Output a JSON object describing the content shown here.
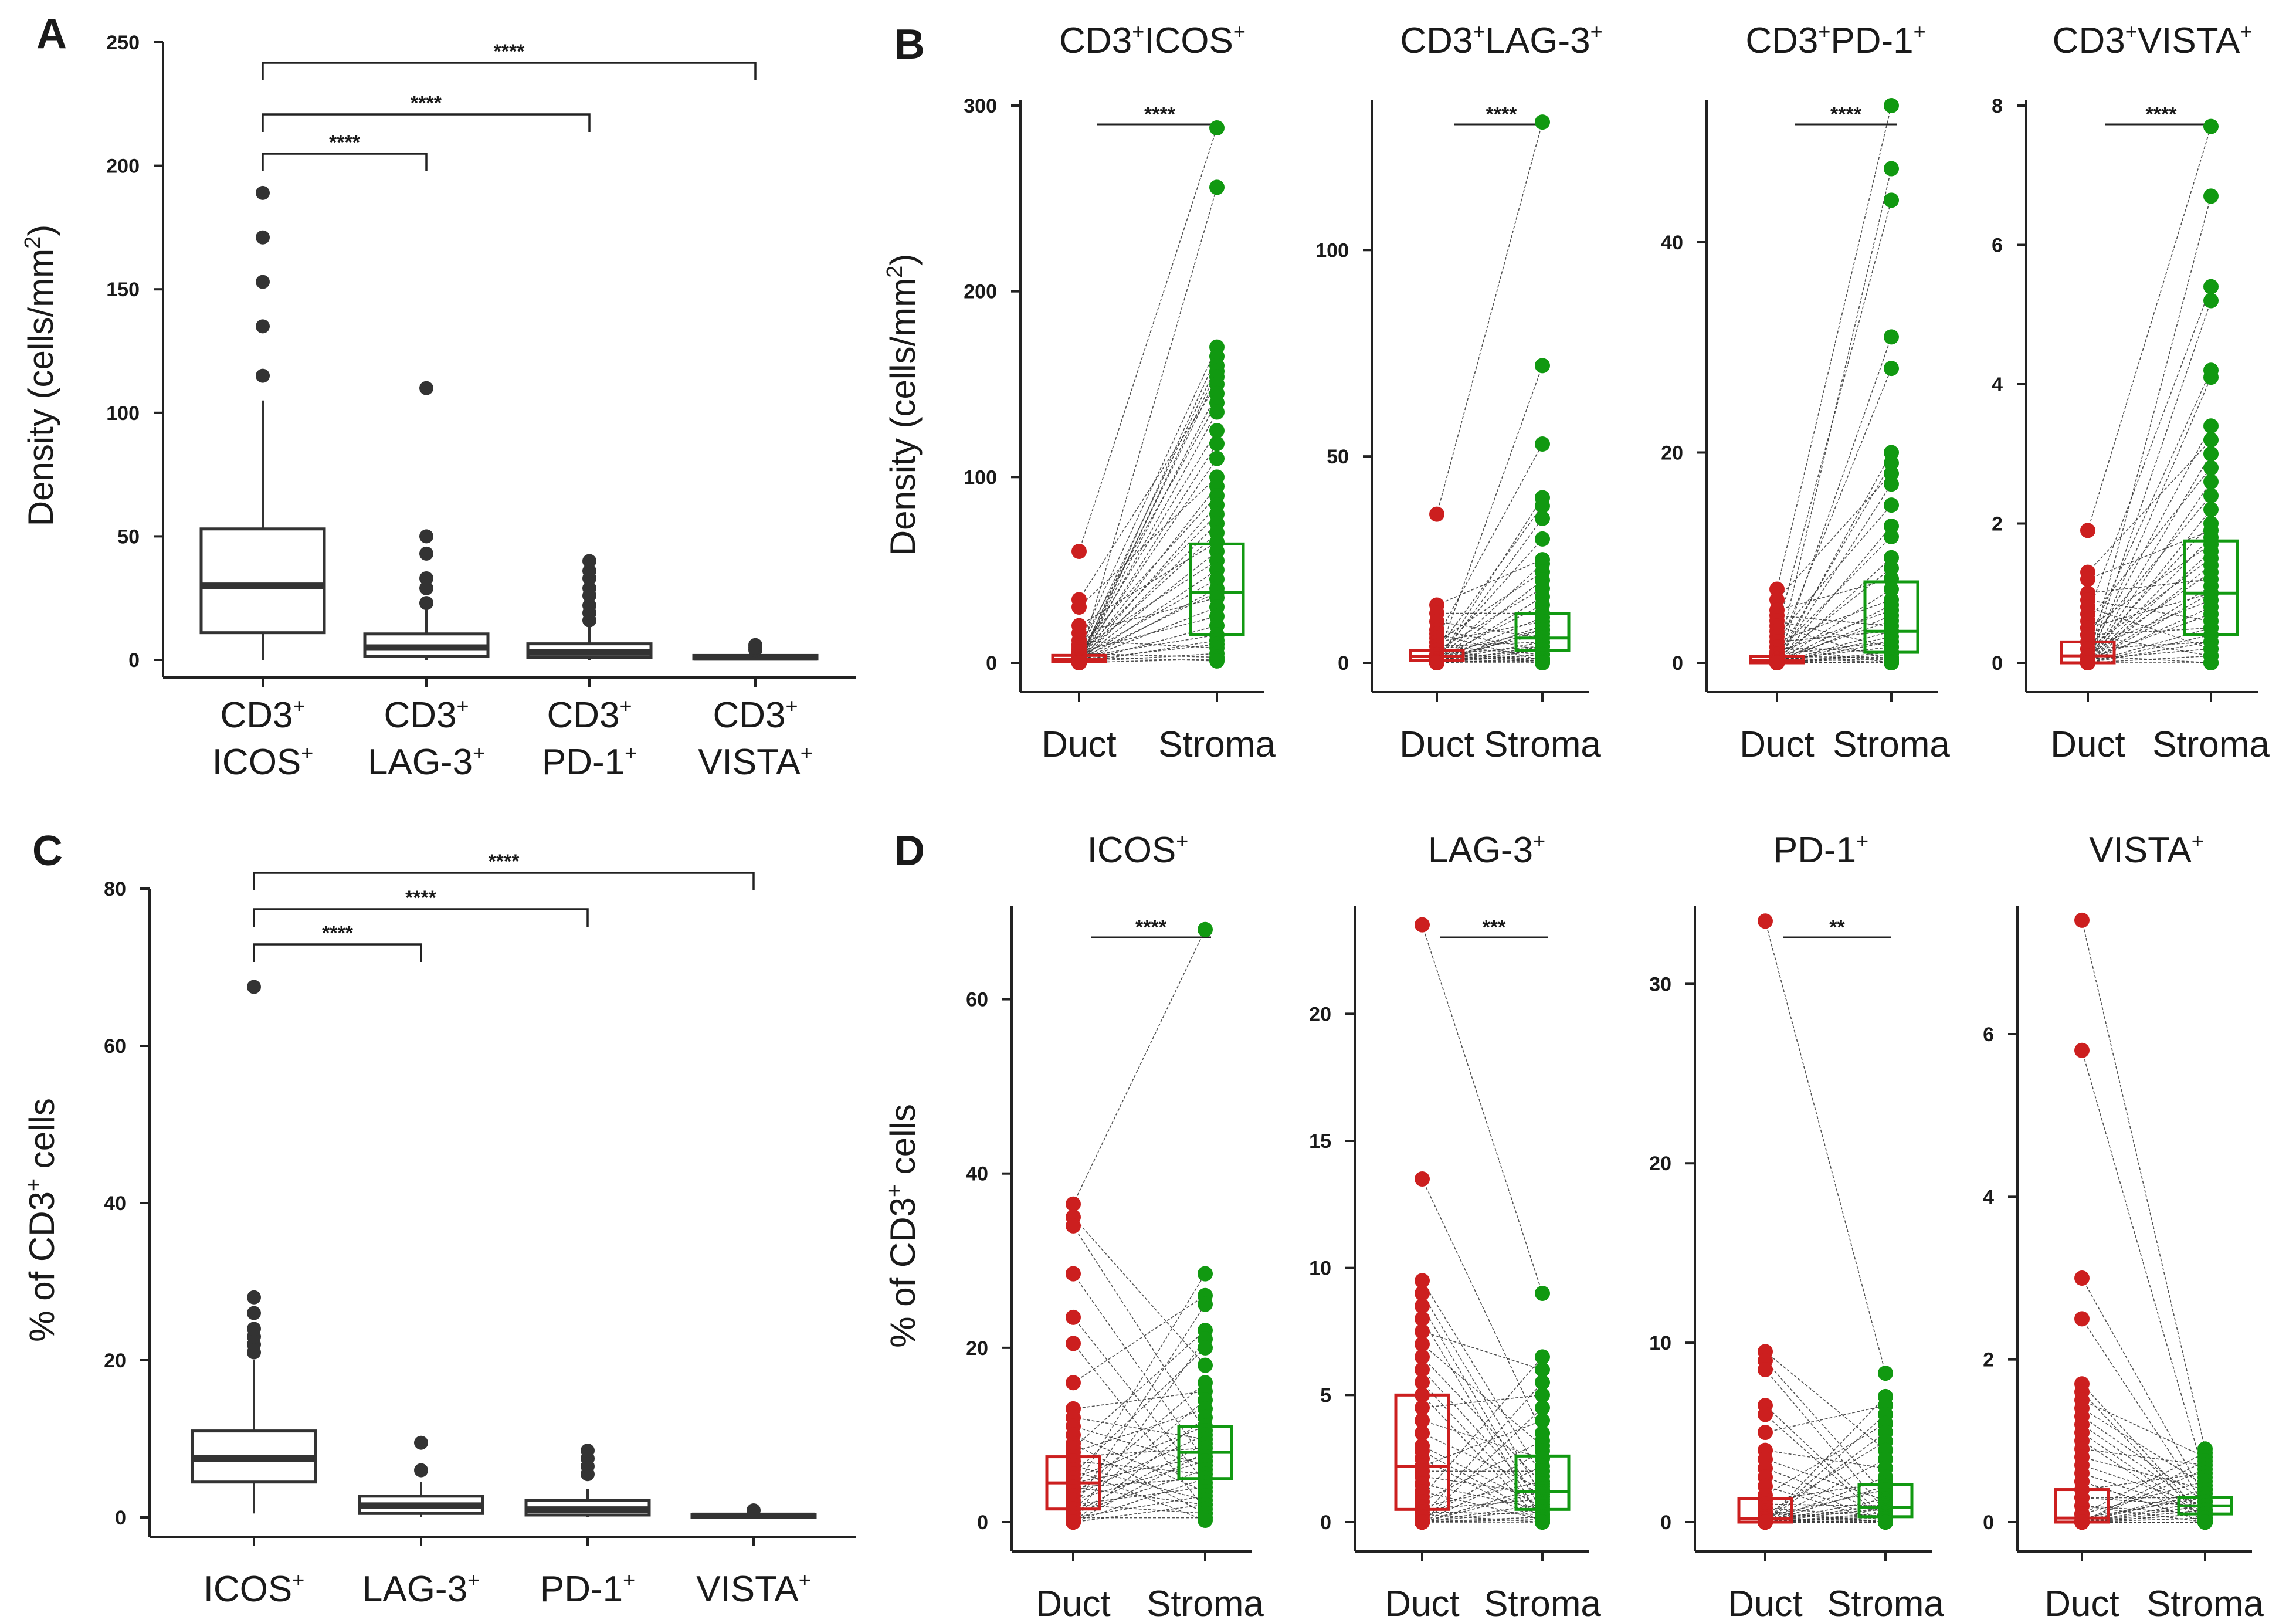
{
  "colors": {
    "duct": "#cc1f1f",
    "stroma": "#119911",
    "box": "#333333",
    "line": "#222222"
  },
  "chart_data": [
    {
      "id": "A",
      "type": "box",
      "panel_label": "A",
      "ylabel_main": "Density (cells/mm",
      "ylabel_sup": "2",
      "ylabel_end": ")",
      "ylim": [
        0,
        250
      ],
      "yticks": [
        "0",
        "50",
        "100",
        "150",
        "200",
        "250"
      ],
      "categories": [
        {
          "line1": "CD3",
          "sup1": "+",
          "line2": "ICOS",
          "sup2": "+"
        },
        {
          "line1": "CD3",
          "sup1": "+",
          "line2": "LAG-3",
          "sup2": "+"
        },
        {
          "line1": "CD3",
          "sup1": "+",
          "line2": "PD-1",
          "sup2": "+"
        },
        {
          "line1": "CD3",
          "sup1": "+",
          "line2": "VISTA",
          "sup2": "+"
        }
      ],
      "boxes": [
        {
          "q1": 11,
          "median": 30,
          "q3": 53,
          "lo": 0,
          "hi": 105,
          "outliers": [
            115,
            135,
            153,
            171,
            189
          ]
        },
        {
          "q1": 1.5,
          "median": 5,
          "q3": 10.5,
          "lo": 0,
          "hi": 21,
          "outliers": [
            23,
            29,
            33,
            43,
            50,
            110
          ]
        },
        {
          "q1": 1,
          "median": 3,
          "q3": 6.5,
          "lo": 0,
          "hi": 14,
          "outliers": [
            16,
            19,
            22,
            26,
            29,
            33,
            36,
            40
          ]
        },
        {
          "q1": 0.3,
          "median": 1,
          "q3": 1.8,
          "lo": 0,
          "hi": 3,
          "outliers": [
            4,
            5,
            6
          ]
        }
      ],
      "significance": [
        {
          "from": 0,
          "to": 1,
          "label": "****"
        },
        {
          "from": 0,
          "to": 2,
          "label": "****"
        },
        {
          "from": 0,
          "to": 3,
          "label": "****"
        }
      ]
    },
    {
      "id": "C",
      "type": "box",
      "panel_label": "C",
      "ylabel_main": "% of CD3",
      "ylabel_sup": "+",
      "ylabel_end": " cells",
      "ylim": [
        0,
        80
      ],
      "yticks": [
        "0",
        "20",
        "40",
        "60",
        "80"
      ],
      "categories": [
        {
          "line1": "ICOS",
          "sup1": "+"
        },
        {
          "line1": "LAG-3",
          "sup1": "+"
        },
        {
          "line1": "PD-1",
          "sup1": "+"
        },
        {
          "line1": "VISTA",
          "sup1": "+"
        }
      ],
      "boxes": [
        {
          "q1": 4.5,
          "median": 7.5,
          "q3": 11,
          "lo": 0.5,
          "hi": 20,
          "outliers": [
            21,
            22,
            23,
            24,
            26,
            28,
            67.5
          ]
        },
        {
          "q1": 0.5,
          "median": 1.5,
          "q3": 2.7,
          "lo": 0,
          "hi": 4.5,
          "outliers": [
            6,
            9.5
          ]
        },
        {
          "q1": 0.3,
          "median": 1,
          "q3": 2.2,
          "lo": 0,
          "hi": 3.6,
          "outliers": [
            5.5,
            6.5,
            7.5,
            8.5
          ]
        },
        {
          "q1": 0,
          "median": 0.2,
          "q3": 0.4,
          "lo": 0,
          "hi": 0.6,
          "outliers": [
            0.9
          ]
        }
      ],
      "significance": [
        {
          "from": 0,
          "to": 1,
          "label": "****"
        },
        {
          "from": 0,
          "to": 2,
          "label": "****"
        },
        {
          "from": 0,
          "to": 3,
          "label": "****"
        }
      ]
    },
    {
      "id": "B1",
      "type": "paired",
      "panel_label": "B",
      "title": "CD3",
      "title_sup1": "+",
      "title_mid": "ICOS",
      "title_sup2": "+",
      "ylabel_main": "Density (cells/mm",
      "ylabel_sup": "2",
      "ylabel_end": ")",
      "ylim": [
        0,
        300
      ],
      "yticks": [
        0,
        100,
        200,
        300
      ],
      "xticks": [
        "Duct",
        "Stroma"
      ],
      "sig": "****",
      "duct_box": {
        "q1": 0.5,
        "median": 2,
        "q3": 4
      },
      "stroma_box": {
        "q1": 15,
        "median": 38,
        "q3": 64
      },
      "duct": [
        60,
        34,
        30,
        20,
        16,
        12,
        10,
        9,
        8,
        7,
        6,
        5,
        5,
        4,
        4,
        3,
        3,
        3,
        2,
        2,
        2,
        2,
        1.5,
        1,
        1,
        1,
        1,
        0.8,
        0.5,
        0.5,
        0.5,
        0.3,
        0.2,
        0.2,
        0.1,
        0,
        0,
        0,
        0,
        0
      ],
      "stroma": [
        288,
        256,
        170,
        165,
        160,
        157,
        154,
        150,
        145,
        140,
        135,
        125,
        118,
        110,
        100,
        95,
        90,
        85,
        80,
        75,
        70,
        65,
        60,
        55,
        50,
        45,
        40,
        38,
        35,
        30,
        25,
        20,
        15,
        12,
        10,
        8,
        5,
        3,
        2,
        1
      ]
    },
    {
      "id": "B2",
      "type": "paired",
      "panel_label": "",
      "title": "CD3",
      "title_sup1": "+",
      "title_mid": "LAG-3",
      "title_sup2": "+",
      "ylim": [
        0,
        135
      ],
      "yticks": [
        0,
        50,
        100
      ],
      "xticks": [
        "Duct",
        "Stroma"
      ],
      "sig": "****",
      "duct_box": {
        "q1": 0.5,
        "median": 1.5,
        "q3": 3
      },
      "stroma_box": {
        "q1": 3,
        "median": 6,
        "q3": 12
      },
      "duct": [
        36,
        14,
        12,
        10,
        8,
        7,
        6,
        5,
        5,
        4,
        4,
        3,
        3,
        3,
        2,
        2,
        2,
        2,
        1.5,
        1,
        1,
        1,
        1,
        0.8,
        0.5,
        0.5,
        0.5,
        0.3,
        0.2,
        0.2,
        0.1,
        0,
        0,
        0,
        0,
        0,
        0,
        0,
        0,
        0
      ],
      "stroma": [
        131,
        72,
        53,
        40,
        38,
        35,
        30,
        25,
        24,
        22,
        20,
        18,
        16,
        14,
        12,
        11,
        10,
        9,
        8,
        8,
        7,
        6,
        5,
        5,
        4,
        4,
        3,
        3,
        3,
        2,
        2,
        2,
        1,
        1,
        1,
        0.5,
        0.5,
        0.2,
        0,
        0
      ]
    },
    {
      "id": "B3",
      "type": "paired",
      "panel_label": "",
      "title": "CD3",
      "title_sup1": "+",
      "title_mid": "PD-1",
      "title_sup2": "+",
      "ylim": [
        0,
        53
      ],
      "yticks": [
        0,
        20,
        40
      ],
      "xticks": [
        "Duct",
        "Stroma"
      ],
      "sig": "****",
      "duct_box": {
        "q1": 0,
        "median": 0.2,
        "q3": 0.6
      },
      "stroma_box": {
        "q1": 1,
        "median": 3,
        "q3": 7.7
      },
      "duct": [
        7,
        6,
        5,
        4.5,
        4,
        3.5,
        3,
        2.5,
        2,
        2,
        1.5,
        1.5,
        1,
        1,
        1,
        0.8,
        0.6,
        0.5,
        0.5,
        0.4,
        0.3,
        0.3,
        0.2,
        0.2,
        0.1,
        0.1,
        0,
        0,
        0,
        0,
        0,
        0,
        0,
        0,
        0,
        0,
        0,
        0,
        0,
        0
      ],
      "stroma": [
        53,
        47,
        44,
        31,
        28,
        20,
        19,
        18,
        17,
        15,
        13,
        12,
        10,
        9,
        8,
        7,
        6,
        5.5,
        5,
        4.5,
        4,
        3.5,
        3,
        3,
        2.5,
        2,
        2,
        1.5,
        1.5,
        1,
        1,
        0.8,
        0.5,
        0.5,
        0.3,
        0.2,
        0.1,
        0,
        0,
        0
      ]
    },
    {
      "id": "B4",
      "type": "paired",
      "panel_label": "",
      "title": "CD3",
      "title_sup1": "+",
      "title_mid": "VISTA",
      "title_sup2": "+",
      "ylim": [
        0,
        8
      ],
      "yticks": [
        0,
        2,
        4,
        6,
        8
      ],
      "xticks": [
        "Duct",
        "Stroma"
      ],
      "sig": "****",
      "duct_box": {
        "q1": 0,
        "median": 0.1,
        "q3": 0.3
      },
      "stroma_box": {
        "q1": 0.4,
        "median": 1,
        "q3": 1.75
      },
      "duct": [
        1.9,
        1.3,
        1.2,
        1,
        0.9,
        0.8,
        0.7,
        0.6,
        0.5,
        0.5,
        0.4,
        0.4,
        0.3,
        0.3,
        0.2,
        0.2,
        0.2,
        0.1,
        0.1,
        0.1,
        0.1,
        0.05,
        0.05,
        0,
        0,
        0,
        0,
        0,
        0,
        0,
        0,
        0,
        0,
        0,
        0,
        0,
        0,
        0,
        0,
        0
      ],
      "stroma": [
        7.7,
        6.7,
        5.4,
        5.2,
        4.2,
        4.1,
        3.4,
        3.2,
        3,
        2.8,
        2.6,
        2.4,
        2.2,
        2,
        1.9,
        1.8,
        1.7,
        1.6,
        1.5,
        1.4,
        1.3,
        1.2,
        1.1,
        1,
        1,
        0.9,
        0.8,
        0.7,
        0.6,
        0.5,
        0.5,
        0.4,
        0.3,
        0.3,
        0.2,
        0.2,
        0.1,
        0.1,
        0,
        0
      ]
    },
    {
      "id": "D1",
      "type": "paired",
      "panel_label": "D",
      "title": "ICOS",
      "title_sup1": "+",
      "ylabel_main": "% of CD3",
      "ylabel_sup": "+",
      "ylabel_end": " cells",
      "ylim": [
        0,
        70
      ],
      "yticks": [
        0,
        20,
        40,
        60
      ],
      "xticks": [
        "Duct",
        "Stroma"
      ],
      "sig": "****",
      "duct_box": {
        "q1": 1.5,
        "median": 4.5,
        "q3": 7.5
      },
      "stroma_box": {
        "q1": 5,
        "median": 8,
        "q3": 11
      },
      "duct": [
        36.5,
        35,
        34,
        28.5,
        23.5,
        20.5,
        16,
        13,
        12,
        11,
        10,
        9,
        8.5,
        8,
        7.5,
        7,
        6.5,
        6,
        5.5,
        5,
        4.5,
        4,
        4,
        3.5,
        3,
        3,
        2.5,
        2,
        2,
        1.5,
        1.5,
        1,
        1,
        0.5,
        0.5,
        0.2,
        0,
        0,
        0,
        0
      ],
      "stroma": [
        68,
        28.5,
        26,
        25,
        22,
        21,
        20,
        18,
        16,
        15,
        14,
        13,
        12,
        11,
        10.5,
        10,
        9.5,
        9,
        8.5,
        8,
        7.5,
        7,
        7,
        6.5,
        6,
        5.5,
        5,
        5,
        4.5,
        4,
        3.5,
        3,
        2.5,
        2,
        2,
        1.5,
        1,
        1,
        0.5,
        0.2
      ]
    },
    {
      "id": "D2",
      "type": "paired",
      "panel_label": "",
      "title": "LAG-3",
      "title_sup1": "+",
      "ylim": [
        0,
        24
      ],
      "yticks": [
        0,
        5,
        10,
        15,
        20
      ],
      "xticks": [
        "Duct",
        "Stroma"
      ],
      "sig": "***",
      "duct_box": {
        "q1": 0.5,
        "median": 2.2,
        "q3": 5
      },
      "stroma_box": {
        "q1": 0.5,
        "median": 1.2,
        "q3": 2.6
      },
      "duct": [
        23.5,
        13.5,
        9.5,
        9,
        8.5,
        8,
        7.5,
        7,
        6.5,
        6,
        5.5,
        5,
        4.5,
        4,
        3.5,
        3,
        2.8,
        2.5,
        2.2,
        2,
        1.8,
        1.5,
        1.2,
        1,
        0.8,
        0.6,
        0.5,
        0.4,
        0.3,
        0.2,
        0.1,
        0,
        0,
        0,
        0,
        0,
        0,
        0,
        0,
        0
      ],
      "stroma": [
        9,
        6.5,
        6,
        5.5,
        5,
        4.5,
        4,
        3.5,
        3.2,
        3,
        2.8,
        2.5,
        2.2,
        2,
        1.8,
        1.6,
        1.5,
        1.4,
        1.3,
        1.2,
        1.1,
        1,
        0.9,
        0.8,
        0.7,
        0.6,
        0.5,
        0.5,
        0.4,
        0.3,
        0.3,
        0.2,
        0.2,
        0.1,
        0.1,
        0,
        0,
        0,
        0,
        0
      ]
    },
    {
      "id": "D3",
      "type": "paired",
      "panel_label": "",
      "title": "PD-1",
      "title_sup1": "+",
      "ylim": [
        0,
        34
      ],
      "yticks": [
        0,
        10,
        20,
        30
      ],
      "xticks": [
        "Duct",
        "Stroma"
      ],
      "sig": "**",
      "duct_box": {
        "q1": 0,
        "median": 0.2,
        "q3": 1.3
      },
      "stroma_box": {
        "q1": 0.3,
        "median": 0.8,
        "q3": 2.1
      },
      "duct": [
        33.5,
        9.5,
        9,
        8.5,
        6.5,
        6,
        5,
        4,
        3.5,
        3,
        2.5,
        2,
        1.5,
        1.2,
        1,
        0.8,
        0.6,
        0.5,
        0.4,
        0.3,
        0.2,
        0.1,
        0.1,
        0,
        0,
        0,
        0,
        0,
        0,
        0,
        0,
        0,
        0,
        0,
        0,
        0,
        0,
        0,
        0,
        0
      ],
      "stroma": [
        8.3,
        7,
        6.5,
        6,
        5.5,
        5,
        4.5,
        4,
        3.5,
        3,
        2.5,
        2.2,
        2,
        1.8,
        1.5,
        1.3,
        1.2,
        1,
        0.9,
        0.8,
        0.7,
        0.6,
        0.5,
        0.5,
        0.4,
        0.3,
        0.3,
        0.2,
        0.2,
        0.1,
        0.1,
        0,
        0,
        0,
        0,
        0,
        0,
        0,
        0,
        0
      ]
    },
    {
      "id": "D4",
      "type": "paired",
      "panel_label": "",
      "title": "VISTA",
      "title_sup1": "+",
      "ylim": [
        0,
        7.5
      ],
      "yticks": [
        0,
        2,
        4,
        6
      ],
      "xticks": [
        "Duct",
        "Stroma"
      ],
      "sig": "",
      "duct_box": {
        "q1": 0,
        "median": 0.05,
        "q3": 0.4
      },
      "stroma_box": {
        "q1": 0.1,
        "median": 0.2,
        "q3": 0.3
      },
      "duct": [
        7.4,
        5.8,
        3,
        2.5,
        1.7,
        1.6,
        1.5,
        1.4,
        1.3,
        1.2,
        1.1,
        1,
        0.9,
        0.8,
        0.7,
        0.6,
        0.5,
        0.5,
        0.4,
        0.3,
        0.3,
        0.2,
        0.2,
        0.1,
        0.1,
        0.05,
        0,
        0,
        0,
        0,
        0,
        0,
        0,
        0,
        0,
        0,
        0,
        0,
        0,
        0
      ],
      "stroma": [
        0.9,
        0.85,
        0.8,
        0.75,
        0.7,
        0.65,
        0.6,
        0.55,
        0.5,
        0.45,
        0.4,
        0.4,
        0.35,
        0.3,
        0.3,
        0.3,
        0.25,
        0.25,
        0.2,
        0.2,
        0.2,
        0.2,
        0.15,
        0.15,
        0.1,
        0.1,
        0.1,
        0.1,
        0.05,
        0.05,
        0.05,
        0,
        0,
        0,
        0,
        0,
        0,
        0,
        0,
        0
      ]
    }
  ]
}
